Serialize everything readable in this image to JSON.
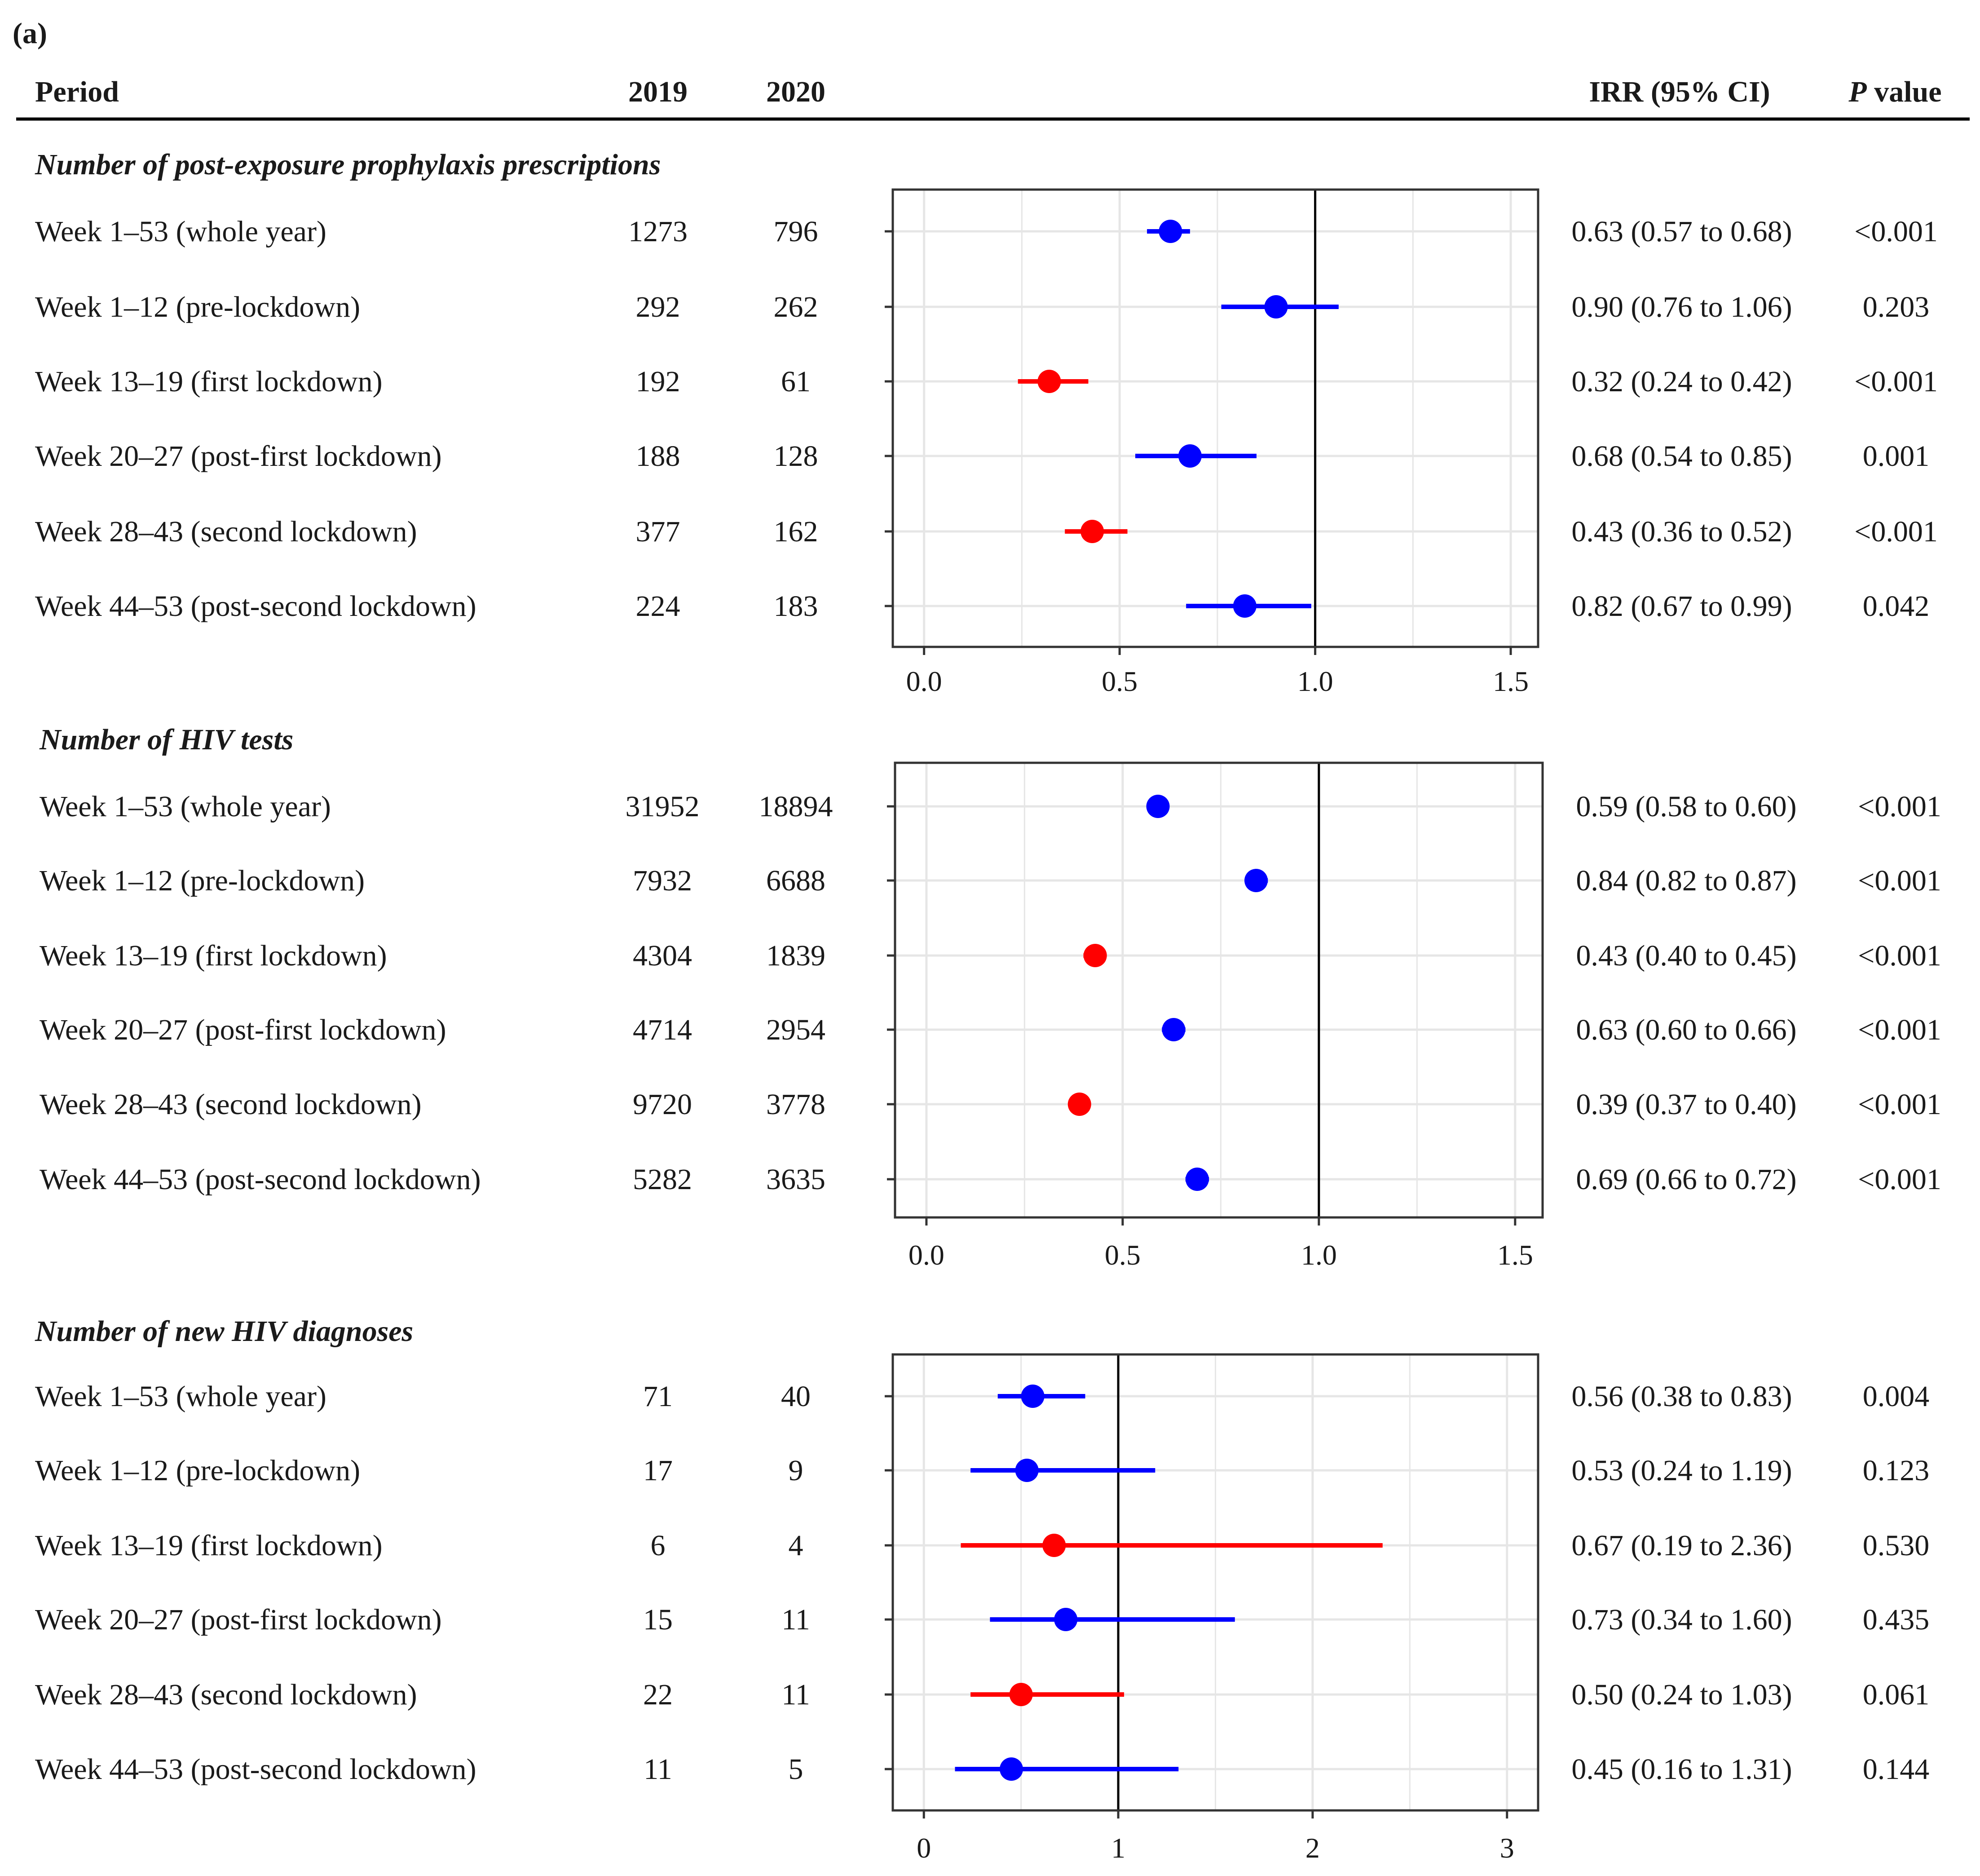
{
  "figure": {
    "panel_label": "(a)",
    "headers": {
      "period": "Period",
      "y2019": "2019",
      "y2020": "2020",
      "irr": "IRR (95% CI)",
      "p_italic": "P",
      "p_rest": " value"
    }
  },
  "colors": {
    "lockdown": "#ff0000",
    "non_lockdown": "#0000ff",
    "grid": "#e6e6e6",
    "frame": "#333333"
  },
  "chart_data": [
    {
      "type": "forest",
      "title": "Number of post-exposure prophylaxis prescriptions",
      "xlim": [
        -0.08,
        1.57
      ],
      "xticks": [
        0,
        0.5,
        1,
        1.5
      ],
      "xtick_labels": [
        "0.0",
        "0.5",
        "1.0",
        "1.5"
      ],
      "xminor": [
        0.25,
        0.75,
        1.25
      ],
      "reference": 1,
      "rows": [
        {
          "label": "Week 1–53 (whole year)",
          "n2019": "1273",
          "n2020": "796",
          "irr": 0.63,
          "lo": 0.57,
          "hi": 0.68,
          "irr_text": "0.63 (0.57 to 0.68)",
          "p": "<0.001",
          "lockdown": false
        },
        {
          "label": "Week 1–12 (pre-lockdown)",
          "n2019": "292",
          "n2020": "262",
          "irr": 0.9,
          "lo": 0.76,
          "hi": 1.06,
          "irr_text": "0.90 (0.76 to 1.06)",
          "p": "0.203",
          "lockdown": false
        },
        {
          "label": "Week 13–19 (first lockdown)",
          "n2019": "192",
          "n2020": "61",
          "irr": 0.32,
          "lo": 0.24,
          "hi": 0.42,
          "irr_text": "0.32 (0.24 to 0.42)",
          "p": "<0.001",
          "lockdown": true
        },
        {
          "label": "Week 20–27 (post-first lockdown)",
          "n2019": "188",
          "n2020": "128",
          "irr": 0.68,
          "lo": 0.54,
          "hi": 0.85,
          "irr_text": "0.68 (0.54 to 0.85)",
          "p": "0.001",
          "lockdown": false
        },
        {
          "label": "Week 28–43 (second lockdown)",
          "n2019": "377",
          "n2020": "162",
          "irr": 0.43,
          "lo": 0.36,
          "hi": 0.52,
          "irr_text": "0.43 (0.36 to 0.52)",
          "p": "<0.001",
          "lockdown": true
        },
        {
          "label": "Week 44–53 (post-second lockdown)",
          "n2019": "224",
          "n2020": "183",
          "irr": 0.82,
          "lo": 0.67,
          "hi": 0.99,
          "irr_text": "0.82 (0.67 to 0.99)",
          "p": "0.042",
          "lockdown": false
        }
      ]
    },
    {
      "type": "forest",
      "title": "Number of HIV tests",
      "xlim": [
        -0.08,
        1.57
      ],
      "xticks": [
        0,
        0.5,
        1,
        1.5
      ],
      "xtick_labels": [
        "0.0",
        "0.5",
        "1.0",
        "1.5"
      ],
      "xminor": [
        0.25,
        0.75,
        1.25
      ],
      "reference": 1,
      "rows": [
        {
          "label": "Week 1–53 (whole year)",
          "n2019": "31952",
          "n2020": "18894",
          "irr": 0.59,
          "lo": 0.58,
          "hi": 0.6,
          "irr_text": "0.59 (0.58 to 0.60)",
          "p": "<0.001",
          "lockdown": false
        },
        {
          "label": "Week 1–12 (pre-lockdown)",
          "n2019": "7932",
          "n2020": "6688",
          "irr": 0.84,
          "lo": 0.82,
          "hi": 0.87,
          "irr_text": "0.84 (0.82 to 0.87)",
          "p": "<0.001",
          "lockdown": false
        },
        {
          "label": "Week 13–19 (first lockdown)",
          "n2019": "4304",
          "n2020": "1839",
          "irr": 0.43,
          "lo": 0.4,
          "hi": 0.45,
          "irr_text": "0.43 (0.40 to 0.45)",
          "p": "<0.001",
          "lockdown": true
        },
        {
          "label": "Week 20–27 (post-first lockdown)",
          "n2019": "4714",
          "n2020": "2954",
          "irr": 0.63,
          "lo": 0.6,
          "hi": 0.66,
          "irr_text": "0.63 (0.60 to 0.66)",
          "p": "<0.001",
          "lockdown": false
        },
        {
          "label": "Week 28–43 (second lockdown)",
          "n2019": "9720",
          "n2020": "3778",
          "irr": 0.39,
          "lo": 0.37,
          "hi": 0.4,
          "irr_text": "0.39 (0.37 to 0.40)",
          "p": "<0.001",
          "lockdown": true
        },
        {
          "label": "Week 44–53 (post-second lockdown)",
          "n2019": "5282",
          "n2020": "3635",
          "irr": 0.69,
          "lo": 0.66,
          "hi": 0.72,
          "irr_text": "0.69 (0.66 to 0.72)",
          "p": "<0.001",
          "lockdown": false
        }
      ]
    },
    {
      "type": "forest",
      "title": "Number of new HIV diagnoses",
      "xlim": [
        -0.16,
        3.16
      ],
      "xticks": [
        0,
        1,
        2,
        3
      ],
      "xtick_labels": [
        "0",
        "1",
        "2",
        "3"
      ],
      "xminor": [
        0.5,
        1.5,
        2.5
      ],
      "reference": 1,
      "rows": [
        {
          "label": "Week 1–53 (whole year)",
          "n2019": "71",
          "n2020": "40",
          "irr": 0.56,
          "lo": 0.38,
          "hi": 0.83,
          "irr_text": "0.56 (0.38 to 0.83)",
          "p": "0.004",
          "lockdown": false
        },
        {
          "label": "Week 1–12 (pre-lockdown)",
          "n2019": "17",
          "n2020": "9",
          "irr": 0.53,
          "lo": 0.24,
          "hi": 1.19,
          "irr_text": "0.53 (0.24 to 1.19)",
          "p": "0.123",
          "lockdown": false
        },
        {
          "label": "Week 13–19 (first lockdown)",
          "n2019": "6",
          "n2020": "4",
          "irr": 0.67,
          "lo": 0.19,
          "hi": 2.36,
          "irr_text": "0.67 (0.19 to 2.36)",
          "p": "0.530",
          "lockdown": true
        },
        {
          "label": "Week 20–27 (post-first lockdown)",
          "n2019": "15",
          "n2020": "11",
          "irr": 0.73,
          "lo": 0.34,
          "hi": 1.6,
          "irr_text": "0.73 (0.34 to 1.60)",
          "p": "0.435",
          "lockdown": false
        },
        {
          "label": "Week 28–43 (second lockdown)",
          "n2019": "22",
          "n2020": "11",
          "irr": 0.5,
          "lo": 0.24,
          "hi": 1.03,
          "irr_text": "0.50 (0.24 to 1.03)",
          "p": "0.061",
          "lockdown": true
        },
        {
          "label": "Week 44–53 (post-second lockdown)",
          "n2019": "11",
          "n2020": "5",
          "irr": 0.45,
          "lo": 0.16,
          "hi": 1.31,
          "irr_text": "0.45 (0.16 to 1.31)",
          "p": "0.144",
          "lockdown": false
        }
      ]
    }
  ]
}
